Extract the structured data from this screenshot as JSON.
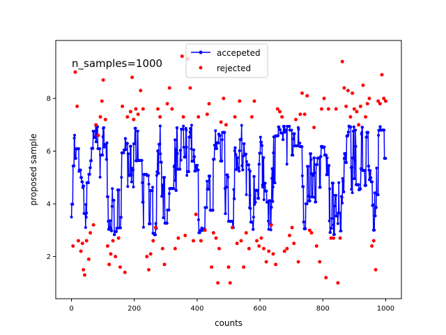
{
  "chart_data": {
    "type": "scatter",
    "xlabel": "counts",
    "ylabel": "proposed sample",
    "xlim": [
      -50,
      1050
    ],
    "ylim": [
      0.4,
      10.2
    ],
    "xticks": [
      0,
      200,
      400,
      600,
      800,
      1000
    ],
    "yticks": [
      2,
      4,
      6,
      8
    ],
    "annotation": "n_samples=1000",
    "grid": false,
    "legend_position": "top-center",
    "series": [
      {
        "name": "accepeted",
        "style": "line-with-markers",
        "color": "#0000ff",
        "n_points": 1000,
        "x_range": [
          0,
          1000
        ],
        "y_range": [
          2.8,
          7.0
        ],
        "y_mean": 4.8,
        "sample_points": [
          [
            0,
            3.5
          ],
          [
            10,
            6.3
          ],
          [
            20,
            6.9
          ],
          [
            40,
            3.2
          ],
          [
            60,
            5.8
          ],
          [
            80,
            6.0
          ],
          [
            100,
            6.9
          ],
          [
            120,
            3.9
          ],
          [
            140,
            3.3
          ],
          [
            160,
            4.5
          ],
          [
            180,
            5.0
          ],
          [
            200,
            6.6
          ],
          [
            220,
            5.8
          ],
          [
            240,
            3.5
          ],
          [
            260,
            3.6
          ],
          [
            280,
            6.6
          ],
          [
            300,
            3.2
          ],
          [
            320,
            6.0
          ],
          [
            340,
            5.2
          ],
          [
            360,
            6.1
          ],
          [
            380,
            6.5
          ],
          [
            400,
            3.0
          ],
          [
            420,
            4.1
          ],
          [
            440,
            3.0
          ],
          [
            460,
            6.7
          ],
          [
            480,
            5.0
          ],
          [
            500,
            4.1
          ],
          [
            520,
            6.1
          ],
          [
            540,
            6.4
          ],
          [
            560,
            4.9
          ],
          [
            580,
            5.0
          ],
          [
            600,
            6.1
          ],
          [
            620,
            3.0
          ],
          [
            640,
            5.0
          ],
          [
            660,
            6.8
          ],
          [
            680,
            6.7
          ],
          [
            700,
            6.4
          ],
          [
            720,
            6.9
          ],
          [
            740,
            4.4
          ],
          [
            760,
            5.5
          ],
          [
            780,
            4.4
          ],
          [
            800,
            6.6
          ],
          [
            820,
            3.3
          ],
          [
            840,
            4.2
          ],
          [
            860,
            3.4
          ],
          [
            880,
            6.9
          ],
          [
            900,
            5.5
          ],
          [
            920,
            6.2
          ],
          [
            940,
            5.8
          ],
          [
            960,
            3.2
          ],
          [
            980,
            6.8
          ],
          [
            1000,
            6.5
          ]
        ]
      },
      {
        "name": "rejected",
        "style": "markers",
        "color": "#ff0000",
        "points": [
          [
            5,
            2.4
          ],
          [
            12,
            9.0
          ],
          [
            18,
            7.7
          ],
          [
            22,
            2.6
          ],
          [
            30,
            2.2
          ],
          [
            35,
            2.5
          ],
          [
            38,
            1.5
          ],
          [
            42,
            1.3
          ],
          [
            48,
            2.6
          ],
          [
            55,
            1.9
          ],
          [
            60,
            2.9
          ],
          [
            70,
            3.2
          ],
          [
            78,
            7.0
          ],
          [
            85,
            6.6
          ],
          [
            92,
            7.3
          ],
          [
            97,
            7.9
          ],
          [
            101,
            8.7
          ],
          [
            108,
            7.2
          ],
          [
            115,
            2.4
          ],
          [
            120,
            1.7
          ],
          [
            125,
            2.1
          ],
          [
            132,
            2.6
          ],
          [
            140,
            2.0
          ],
          [
            150,
            2.7
          ],
          [
            155,
            1.6
          ],
          [
            162,
            7.7
          ],
          [
            170,
            1.4
          ],
          [
            178,
            7.3
          ],
          [
            188,
            7.5
          ],
          [
            193,
            8.8
          ],
          [
            198,
            7.2
          ],
          [
            205,
            7.6
          ],
          [
            212,
            7.4
          ],
          [
            220,
            8.3
          ],
          [
            228,
            7.6
          ],
          [
            240,
            2.0
          ],
          [
            246,
            1.5
          ],
          [
            252,
            2.1
          ],
          [
            260,
            2.6
          ],
          [
            268,
            3.1
          ],
          [
            275,
            7.6
          ],
          [
            282,
            7.3
          ],
          [
            290,
            2.3
          ],
          [
            296,
            1.7
          ],
          [
            305,
            7.8
          ],
          [
            312,
            8.4
          ],
          [
            320,
            7.6
          ],
          [
            330,
            2.3
          ],
          [
            340,
            2.7
          ],
          [
            352,
            9.6
          ],
          [
            356,
            7.3
          ],
          [
            362,
            2.8
          ],
          [
            370,
            9.5
          ],
          [
            378,
            8.4
          ],
          [
            388,
            2.6
          ],
          [
            396,
            3.6
          ],
          [
            404,
            7.3
          ],
          [
            412,
            2.6
          ],
          [
            425,
            3.0
          ],
          [
            432,
            7.4
          ],
          [
            438,
            7.8
          ],
          [
            446,
            1.6
          ],
          [
            452,
            2.9
          ],
          [
            460,
            2.7
          ],
          [
            466,
            1.0
          ],
          [
            470,
            2.3
          ],
          [
            476,
            7.1
          ],
          [
            484,
            8.0
          ],
          [
            492,
            7.0
          ],
          [
            500,
            1.6
          ],
          [
            505,
            1.0
          ],
          [
            512,
            3.1
          ],
          [
            520,
            7.3
          ],
          [
            527,
            2.5
          ],
          [
            535,
            7.9
          ],
          [
            540,
            2.6
          ],
          [
            548,
            1.6
          ],
          [
            556,
            2.9
          ],
          [
            565,
            2.3
          ],
          [
            574,
            7.3
          ],
          [
            582,
            7.9
          ],
          [
            590,
            2.6
          ],
          [
            597,
            2.4
          ],
          [
            604,
            2.7
          ],
          [
            612,
            2.3
          ],
          [
            620,
            1.8
          ],
          [
            628,
            2.2
          ],
          [
            636,
            3.2
          ],
          [
            642,
            2.1
          ],
          [
            650,
            1.7
          ],
          [
            656,
            7.6
          ],
          [
            663,
            7.5
          ],
          [
            670,
            7.3
          ],
          [
            678,
            2.2
          ],
          [
            686,
            2.3
          ],
          [
            694,
            2.8
          ],
          [
            702,
            3.1
          ],
          [
            708,
            2.5
          ],
          [
            714,
            7.2
          ],
          [
            722,
            1.8
          ],
          [
            728,
            7.4
          ],
          [
            734,
            8.2
          ],
          [
            742,
            7.4
          ],
          [
            750,
            8.1
          ],
          [
            758,
            3.0
          ],
          [
            764,
            2.9
          ],
          [
            772,
            6.9
          ],
          [
            780,
            2.4
          ],
          [
            790,
            1.8
          ],
          [
            796,
            7.6
          ],
          [
            804,
            8.0
          ],
          [
            810,
            1.2
          ],
          [
            818,
            7.6
          ],
          [
            826,
            2.7
          ],
          [
            834,
            2.7
          ],
          [
            842,
            7.6
          ],
          [
            848,
            1.0
          ],
          [
            855,
            2.7
          ],
          [
            862,
            9.4
          ],
          [
            868,
            8.4
          ],
          [
            874,
            7.7
          ],
          [
            880,
            8.3
          ],
          [
            888,
            7.3
          ],
          [
            894,
            8.2
          ],
          [
            900,
            7.6
          ],
          [
            908,
            7.5
          ],
          [
            914,
            7.0
          ],
          [
            920,
            7.7
          ],
          [
            928,
            8.5
          ],
          [
            936,
            7.3
          ],
          [
            942,
            7.8
          ],
          [
            948,
            8.0
          ],
          [
            956,
            2.4
          ],
          [
            962,
            2.6
          ],
          [
            968,
            1.5
          ],
          [
            976,
            7.9
          ],
          [
            982,
            7.8
          ],
          [
            988,
            8.9
          ],
          [
            994,
            8.0
          ],
          [
            1000,
            7.9
          ]
        ]
      }
    ]
  }
}
